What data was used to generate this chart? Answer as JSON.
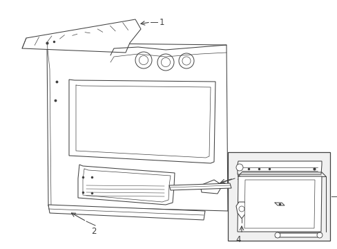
{
  "background_color": "#ffffff",
  "line_color": "#404040",
  "lw": 0.75,
  "fig_width": 4.89,
  "fig_height": 3.6,
  "label_fontsize": 8.5
}
